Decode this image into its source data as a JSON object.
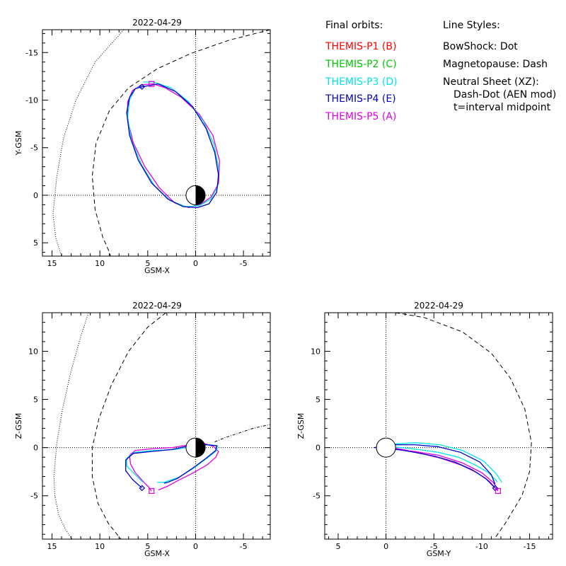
{
  "legend": {
    "orbits_title": "Final orbits:",
    "styles_title": "Line Styles:",
    "probes": [
      {
        "label": "THEMIS-P1 (B)",
        "color": "#ff0000"
      },
      {
        "label": "THEMIS-P2 (C)",
        "color": "#00c800"
      },
      {
        "label": "THEMIS-P3 (D)",
        "color": "#00e5e5"
      },
      {
        "label": "THEMIS-P4 (E)",
        "color": "#0000c8"
      },
      {
        "label": "THEMIS-P5 (A)",
        "color": "#e000e0"
      }
    ],
    "styles": [
      "BowShock: Dot",
      "Magnetopause: Dash",
      "Neutral Sheet (XZ):",
      "Dash-Dot (AEN mod)",
      "t=interval midpoint"
    ]
  },
  "chart_data": [
    {
      "type": "line",
      "title": "2022-04-29",
      "xlabel": "GSM-X",
      "ylabel": "Y-GSM",
      "xlim": [
        16.0,
        -7.8
      ],
      "ylim": [
        6.4,
        -17.4
      ],
      "xticks": [
        15,
        10,
        5,
        0,
        -5
      ],
      "yticks": [
        -15,
        -10,
        -5,
        0,
        5
      ],
      "start_markers": {
        "P4": [
          5.6,
          -11.4
        ],
        "P5": [
          4.6,
          -11.7
        ]
      },
      "series": [
        {
          "name": "THEMIS-P5 (A)",
          "color": "#e000e0",
          "x": [
            4.6,
            4.4,
            3.2,
            1.5,
            -0.4,
            -1.8,
            -2.5,
            -2.4,
            -1.6,
            -0.6,
            0.7,
            2.2,
            3.8,
            5.3,
            6.5,
            7.1,
            7.1,
            6.6,
            5.7,
            4.6
          ],
          "y": [
            -11.7,
            -11.7,
            -11.3,
            -10.3,
            -8.5,
            -6.3,
            -3.6,
            -1.2,
            0.2,
            0.9,
            1.3,
            0.8,
            -0.8,
            -3.0,
            -5.5,
            -7.9,
            -9.8,
            -11.0,
            -11.6,
            -11.7
          ]
        },
        {
          "name": "THEMIS-P3 (D)",
          "color": "#00e5e5",
          "x": [
            5.5,
            4.4,
            2.6,
            0.8,
            -0.8,
            -1.9,
            -2.4,
            -2.3,
            -1.6,
            -0.4,
            1.0,
            2.6,
            4.3,
            5.7,
            6.7,
            7.1,
            6.9,
            6.3,
            5.5
          ],
          "y": [
            -11.9,
            -11.9,
            -11.3,
            -9.9,
            -7.8,
            -5.4,
            -2.9,
            -0.9,
            0.4,
            1.1,
            1.2,
            0.6,
            -1.0,
            -3.3,
            -5.8,
            -8.2,
            -10.0,
            -11.2,
            -11.6
          ]
        },
        {
          "name": "THEMIS-P4 (E)",
          "color": "#0000c8",
          "x": [
            5.6,
            3.9,
            2.1,
            0.3,
            -1.1,
            -2.0,
            -2.4,
            -2.2,
            -1.4,
            -0.2,
            1.3,
            2.9,
            4.6,
            6.0,
            6.9,
            7.2,
            6.9,
            6.3,
            5.6
          ],
          "y": [
            -11.4,
            -11.7,
            -10.9,
            -9.3,
            -7.0,
            -4.5,
            -2.1,
            -0.3,
            0.9,
            1.3,
            1.2,
            0.4,
            -1.3,
            -3.7,
            -6.3,
            -8.7,
            -10.3,
            -11.2,
            -11.4
          ]
        }
      ],
      "bow_shock": {
        "x": [
          7.5,
          10.5,
          12.5,
          13.8,
          14.5,
          14.9,
          14.6,
          14.2,
          14.0
        ],
        "y": [
          -17.4,
          -14.0,
          -10.0,
          -6.0,
          -2.0,
          2.0,
          4.5,
          5.8,
          6.4
        ]
      },
      "magnetopause": {
        "x": [
          -7.8,
          -3.5,
          0.5,
          4.0,
          7.0,
          9.0,
          10.4,
          10.8,
          10.5,
          9.7,
          9.0,
          8.9
        ],
        "y": [
          -17.4,
          -16.3,
          -14.9,
          -13.3,
          -11.3,
          -8.9,
          -5.5,
          -2.0,
          1.5,
          4.4,
          6.0,
          6.4
        ]
      },
      "earth": {
        "center": [
          0,
          0
        ],
        "radius": 1
      }
    },
    {
      "type": "line",
      "title": "2022-04-29",
      "xlabel": "GSM-X",
      "ylabel": "Z-GSM",
      "xlim": [
        16.0,
        -7.8
      ],
      "ylim": [
        -9.5,
        14.0
      ],
      "xticks": [
        15,
        10,
        5,
        0,
        -5
      ],
      "yticks": [
        -5,
        0,
        5,
        10
      ],
      "start_markers": {
        "P4": [
          5.6,
          -4.2
        ],
        "P5": [
          4.6,
          -4.5
        ]
      },
      "series": [
        {
          "name": "THEMIS-P5 (A)",
          "color": "#e000e0",
          "x": [
            4.6,
            4.7,
            4.9,
            5.5,
            6.3,
            6.8,
            6.9,
            6.3,
            4.3,
            2.4,
            0.6,
            -1.0,
            -1.9,
            -2.4,
            -2.1,
            -1.2,
            0.4,
            1.8,
            2.9,
            3.9
          ],
          "y": [
            -4.5,
            -4.4,
            -4.1,
            -3.5,
            -2.6,
            -1.7,
            -0.8,
            -0.3,
            -0.1,
            0.0,
            0.3,
            0.4,
            0.1,
            -0.4,
            -1.0,
            -1.8,
            -2.7,
            -3.4,
            -4.0,
            -4.4
          ]
        },
        {
          "name": "THEMIS-P3 (D)",
          "color": "#00e5e5",
          "x": [
            5.5,
            6.3,
            7.2,
            7.2,
            6.4,
            4.3,
            2.2,
            0.3,
            -1.3,
            -2.3,
            -2.2,
            -1.2,
            0.3,
            1.8,
            3.3,
            4.0
          ],
          "y": [
            -3.6,
            -2.8,
            -1.9,
            -1.1,
            -0.5,
            -0.3,
            -0.2,
            0.1,
            0.3,
            0.2,
            -0.3,
            -1.1,
            -2.2,
            -3.1,
            -3.6,
            -3.6
          ]
        },
        {
          "name": "THEMIS-P4 (E)",
          "color": "#0000c8",
          "x": [
            5.6,
            6.6,
            7.3,
            7.3,
            6.5,
            4.6,
            2.5,
            0.6,
            -1.1,
            -2.2,
            -2.1,
            -1.1,
            0.4,
            1.9,
            2.9,
            3.3
          ],
          "y": [
            -4.2,
            -3.3,
            -2.4,
            -1.3,
            -0.6,
            -0.4,
            -0.2,
            0.2,
            0.3,
            0.2,
            -0.3,
            -1.1,
            -2.2,
            -3.2,
            -3.6,
            -3.7
          ]
        }
      ],
      "bow_shock": {
        "x": [
          11.2,
          12.0,
          13.0,
          13.9,
          14.5,
          14.8,
          14.7,
          14.3,
          13.6,
          12.9
        ],
        "y": [
          14.0,
          11.5,
          8.0,
          4.0,
          0.5,
          -3.0,
          -5.0,
          -7.0,
          -8.5,
          -9.5
        ]
      },
      "magnetopause": {
        "x": [
          3.1,
          5.0,
          7.0,
          8.8,
          10.1,
          10.8,
          10.8,
          10.2,
          9.1,
          7.8
        ],
        "y": [
          14.0,
          12.5,
          10.0,
          6.5,
          3.0,
          0.0,
          -3.0,
          -5.8,
          -7.9,
          -9.5
        ]
      },
      "neutral_sheet": {
        "x": [
          -2.0,
          -3.0,
          -4.5,
          -6.0,
          -7.8
        ],
        "y": [
          0.6,
          1.0,
          1.5,
          2.0,
          2.4
        ]
      },
      "earth": {
        "center": [
          0,
          0
        ],
        "radius": 1
      }
    },
    {
      "type": "line",
      "title": "2022-04-29",
      "xlabel": "GSM-Y",
      "ylabel": "Z-GSM",
      "xlim": [
        6.4,
        -17.4
      ],
      "ylim": [
        -9.5,
        14.0
      ],
      "xticks": [
        5,
        0,
        -5,
        -10,
        -15
      ],
      "yticks": [
        -5,
        0,
        5,
        10
      ],
      "start_markers": {
        "P4": [
          -11.4,
          -4.2
        ],
        "P5": [
          -11.7,
          -4.5
        ]
      },
      "series": [
        {
          "name": "THEMIS-P5 (A)",
          "color": "#e000e0",
          "x": [
            -11.7,
            -11.5,
            -10.8,
            -9.5,
            -7.8,
            -5.7,
            -3.6,
            -1.8,
            -0.5,
            0.3,
            0.8,
            0.4,
            -1.0,
            -3.0,
            -5.5,
            -8.0,
            -10.0,
            -11.2,
            -11.7
          ],
          "y": [
            -4.5,
            -4.3,
            -3.5,
            -2.6,
            -1.8,
            -1.1,
            -0.6,
            -0.2,
            0.0,
            0.1,
            0.0,
            -0.1,
            -0.2,
            -0.4,
            -0.8,
            -1.6,
            -2.6,
            -3.6,
            -4.4
          ]
        },
        {
          "name": "THEMIS-P3 (D)",
          "color": "#00e5e5",
          "x": [
            -11.6,
            -11.5,
            -10.7,
            -9.3,
            -7.6,
            -5.5,
            -3.4,
            -1.6,
            -0.4,
            0.5,
            0.9,
            0.3,
            -1.2,
            -3.2,
            -5.6,
            -8.0,
            -10.2,
            -11.5,
            -12.1
          ],
          "y": [
            -3.6,
            -3.4,
            -2.6,
            -1.8,
            -1.0,
            -0.5,
            -0.2,
            0.0,
            0.1,
            0.1,
            0.0,
            0.2,
            0.4,
            0.5,
            0.3,
            -0.3,
            -1.4,
            -2.7,
            -3.6
          ]
        },
        {
          "name": "THEMIS-P4 (E)",
          "color": "#0000c8",
          "x": [
            -11.4,
            -11.2,
            -10.4,
            -9.0,
            -7.2,
            -5.1,
            -3.0,
            -1.3,
            0.0,
            0.8,
            1.2,
            0.6,
            -1.0,
            -3.0,
            -5.4,
            -7.8,
            -9.8,
            -11.0,
            -11.4
          ],
          "y": [
            -4.2,
            -4.0,
            -3.2,
            -2.3,
            -1.5,
            -0.9,
            -0.5,
            -0.2,
            -0.1,
            0.0,
            0.0,
            0.1,
            0.3,
            0.3,
            0.1,
            -0.5,
            -1.5,
            -2.8,
            -3.8
          ]
        }
      ],
      "magnetopause": {
        "x": [
          -1.0,
          -4.0,
          -8.0,
          -11.0,
          -13.0,
          -14.5,
          -15.2,
          -15.0,
          -14.2,
          -12.5,
          -11.3
        ],
        "y": [
          14.0,
          13.5,
          12.0,
          9.8,
          7.2,
          4.0,
          0.5,
          -2.5,
          -5.0,
          -7.8,
          -9.5
        ]
      },
      "earth": {
        "center": [
          0,
          0
        ],
        "radius": 1
      }
    }
  ]
}
